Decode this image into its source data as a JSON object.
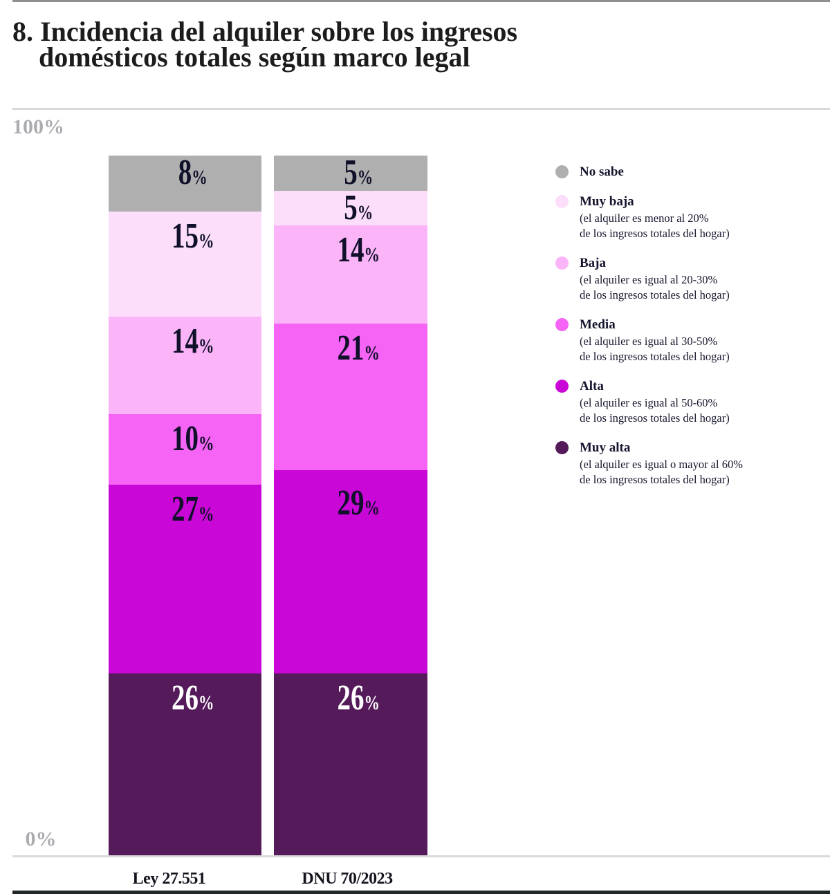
{
  "title": {
    "lines": [
      "8. Incidencia del alquiler sobre los ingresos",
      "domésticos totales según marco legal"
    ]
  },
  "y_axis": {
    "top": "100%",
    "bottom": "0%"
  },
  "chart_data": {
    "type": "bar",
    "stacked": true,
    "unit": "%",
    "ylim": [
      0,
      100
    ],
    "grid": false,
    "legend_position": "right",
    "categories": [
      "Ley 27.551",
      "DNU 70/2023"
    ],
    "series": [
      {
        "name": "No sabe",
        "desc": "",
        "color": "#afafaf",
        "label_color": "#10102a",
        "values": [
          8,
          5
        ]
      },
      {
        "name": "Muy baja",
        "desc": "(el alquiler es menor al 20%\nde los ingresos totales del hogar)",
        "color": "#fcdefb",
        "label_color": "#10102a",
        "values": [
          15,
          5
        ]
      },
      {
        "name": "Baja",
        "desc": "(el alquiler es igual al 20-30%\nde los ingresos totales del hogar)",
        "color": "#fab4f7",
        "label_color": "#10102a",
        "values": [
          14,
          14
        ]
      },
      {
        "name": "Media",
        "desc": "(el alquiler es igual al 30-50%\nde los ingresos totales del hogar)",
        "color": "#f564f5",
        "label_color": "#10102a",
        "values": [
          10,
          21
        ]
      },
      {
        "name": "Alta",
        "desc": "(el alquiler es igual al 50-60%\nde los ingresos totales del hogar)",
        "color": "#c908d7",
        "label_color": "#10102a",
        "values": [
          27,
          29
        ]
      },
      {
        "name": "Muy alta",
        "desc": "(el alquiler es igual o mayor al 60%\nde los ingresos totales del hogar)",
        "color": "#541a5a",
        "label_color": "#ffffff",
        "values": [
          26,
          26
        ]
      }
    ]
  }
}
